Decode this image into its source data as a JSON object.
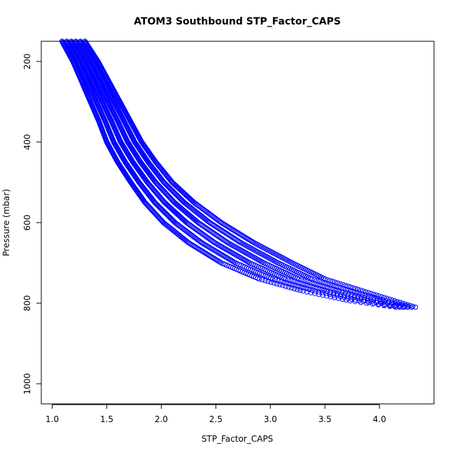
{
  "chart_data": {
    "type": "scatter",
    "title": "ATOM3 Southbound STP_Factor_CAPS",
    "xlabel": "STP_Factor_CAPS",
    "ylabel": "Pressure (mbar)",
    "xlim": [
      0.9,
      4.5
    ],
    "ylim": [
      1050,
      150
    ],
    "y_reversed": true,
    "grid": false,
    "x_ticks": [
      {
        "value": 1.0,
        "label": "1.0"
      },
      {
        "value": 1.5,
        "label": "1.5"
      },
      {
        "value": 2.0,
        "label": "2.0"
      },
      {
        "value": 2.5,
        "label": "2.5"
      },
      {
        "value": 3.0,
        "label": "3.0"
      },
      {
        "value": 3.5,
        "label": "3.5"
      },
      {
        "value": 4.0,
        "label": "4.0"
      }
    ],
    "y_ticks": [
      {
        "value": 200,
        "label": "200"
      },
      {
        "value": 400,
        "label": "400"
      },
      {
        "value": 600,
        "label": "600"
      },
      {
        "value": 800,
        "label": "800"
      },
      {
        "value": 1000,
        "label": "1000"
      }
    ],
    "series": [
      {
        "color": "#0000ff",
        "marker": "open-circle",
        "band": [
          {
            "pressure": 150,
            "x_min": 1.09,
            "x_max": 1.3
          },
          {
            "pressure": 200,
            "x_min": 1.19,
            "x_max": 1.42
          },
          {
            "pressure": 250,
            "x_min": 1.27,
            "x_max": 1.52
          },
          {
            "pressure": 300,
            "x_min": 1.35,
            "x_max": 1.62
          },
          {
            "pressure": 350,
            "x_min": 1.43,
            "x_max": 1.72
          },
          {
            "pressure": 400,
            "x_min": 1.5,
            "x_max": 1.82
          },
          {
            "pressure": 450,
            "x_min": 1.6,
            "x_max": 1.95
          },
          {
            "pressure": 500,
            "x_min": 1.72,
            "x_max": 2.1
          },
          {
            "pressure": 550,
            "x_min": 1.85,
            "x_max": 2.3
          },
          {
            "pressure": 600,
            "x_min": 2.02,
            "x_max": 2.55
          },
          {
            "pressure": 650,
            "x_min": 2.25,
            "x_max": 2.85
          },
          {
            "pressure": 700,
            "x_min": 2.55,
            "x_max": 3.2
          },
          {
            "pressure": 740,
            "x_min": 2.9,
            "x_max": 3.5
          },
          {
            "pressure": 770,
            "x_min": 3.3,
            "x_max": 3.85
          },
          {
            "pressure": 795,
            "x_min": 3.75,
            "x_max": 4.15
          },
          {
            "pressure": 810,
            "x_min": 4.15,
            "x_max": 4.33
          }
        ]
      }
    ]
  }
}
